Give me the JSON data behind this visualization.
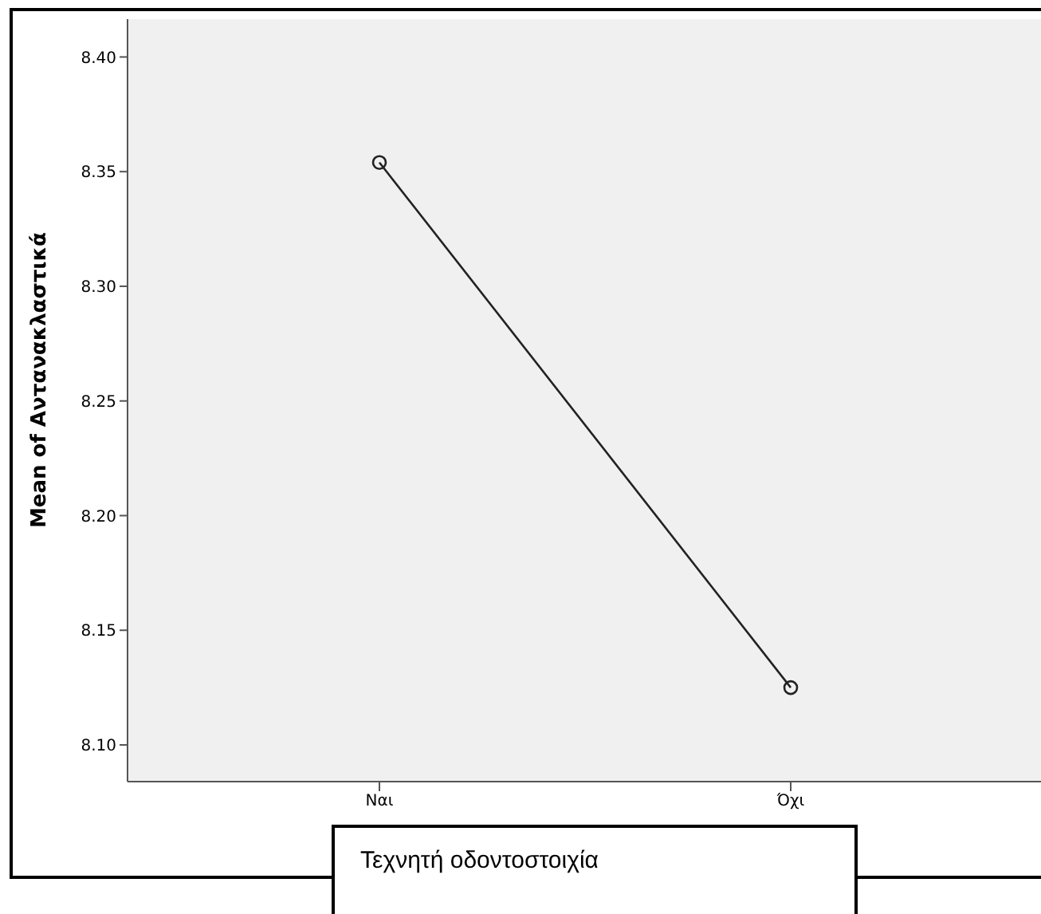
{
  "chart_data": {
    "type": "line",
    "categories": [
      "Ναι",
      "Όχι"
    ],
    "series": [
      {
        "color": "#222222",
        "values": [
          8.354,
          8.125
        ]
      }
    ],
    "ylabel": "Mean of Αντανακλαστικά",
    "xlabel": "Τεχνητή οδοντοστοιχία",
    "ylim": [
      8.084,
      8.4165
    ],
    "yticks": [
      {
        "value": 8.1,
        "label": "8.10"
      },
      8.15,
      {
        "value": 8.2,
        "label": "8.20"
      },
      8.25,
      {
        "value": 8.3,
        "label": "8.30"
      },
      8.35,
      {
        "value": 8.4,
        "label": "8.40"
      }
    ],
    "grid": false,
    "legend": false,
    "marker": "circle",
    "line_style": "solid"
  }
}
